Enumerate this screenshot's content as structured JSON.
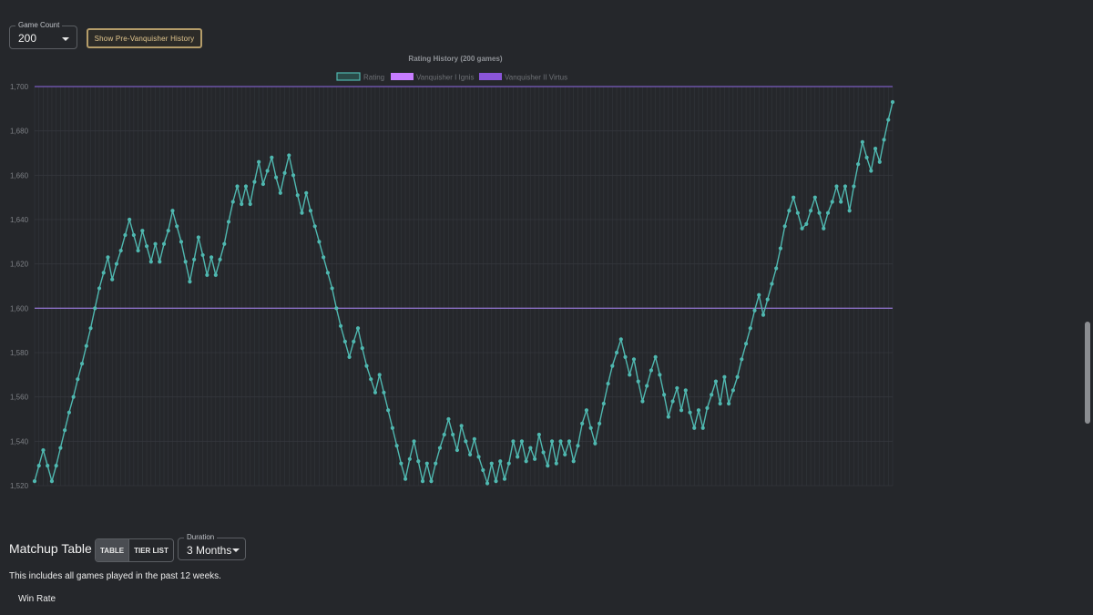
{
  "controls": {
    "game_count_label": "Game Count",
    "game_count_value": "200",
    "pre_vanquisher_button": "Show Pre-Vanquisher History"
  },
  "chart_data": {
    "type": "line",
    "title": "Rating History (200 games)",
    "legend": [
      "Rating",
      "Vanquisher I Ignis",
      "Vanquisher II Virtus"
    ],
    "legend_placement": "top-center",
    "ylim": [
      1520,
      1700
    ],
    "y_ticks": [
      "1,520",
      "1,540",
      "1,560",
      "1,580",
      "1,600",
      "1,620",
      "1,640",
      "1,660",
      "1,680",
      "1,700"
    ],
    "grid": true,
    "colors": {
      "rating": "#4fb8b0",
      "vanquisher_i": "#c77dff",
      "vanquisher_ii": "#8a55d8"
    },
    "thresholds": [
      {
        "name": "Vanquisher I Ignis",
        "value": 1600
      },
      {
        "name": "Vanquisher II Virtus",
        "value": 1700
      }
    ],
    "series": [
      {
        "name": "Rating",
        "values": [
          1522,
          1529,
          1536,
          1529,
          1522,
          1529,
          1537,
          1545,
          1553,
          1560,
          1568,
          1575,
          1583,
          1591,
          1600,
          1609,
          1616,
          1623,
          1613,
          1620,
          1626,
          1633,
          1640,
          1633,
          1626,
          1635,
          1628,
          1621,
          1629,
          1621,
          1629,
          1635,
          1644,
          1637,
          1630,
          1621,
          1612,
          1622,
          1632,
          1624,
          1615,
          1623,
          1615,
          1622,
          1629,
          1639,
          1648,
          1655,
          1647,
          1655,
          1647,
          1657,
          1666,
          1656,
          1662,
          1668,
          1659,
          1652,
          1661,
          1669,
          1660,
          1651,
          1643,
          1652,
          1644,
          1637,
          1630,
          1623,
          1616,
          1609,
          1600,
          1592,
          1585,
          1578,
          1585,
          1591,
          1582,
          1574,
          1568,
          1562,
          1570,
          1562,
          1554,
          1546,
          1538,
          1530,
          1523,
          1532,
          1540,
          1531,
          1522,
          1530,
          1522,
          1530,
          1537,
          1543,
          1550,
          1543,
          1536,
          1547,
          1540,
          1534,
          1541,
          1533,
          1527,
          1521,
          1530,
          1522,
          1531,
          1523,
          1530,
          1540,
          1533,
          1540,
          1531,
          1537,
          1532,
          1543,
          1535,
          1529,
          1540,
          1530,
          1540,
          1534,
          1540,
          1531,
          1538,
          1548,
          1554,
          1546,
          1539,
          1548,
          1557,
          1566,
          1574,
          1580,
          1586,
          1578,
          1570,
          1577,
          1567,
          1558,
          1565,
          1572,
          1578,
          1570,
          1561,
          1551,
          1558,
          1564,
          1554,
          1563,
          1553,
          1546,
          1554,
          1546,
          1555,
          1561,
          1567,
          1557,
          1569,
          1557,
          1563,
          1569,
          1577,
          1584,
          1591,
          1599,
          1606,
          1597,
          1604,
          1611,
          1618,
          1627,
          1637,
          1644,
          1650,
          1643,
          1636,
          1638,
          1644,
          1650,
          1643,
          1636,
          1643,
          1648,
          1655,
          1648,
          1655,
          1644,
          1655,
          1665,
          1675,
          1668,
          1662,
          1672,
          1666,
          1676,
          1685,
          1693
        ]
      }
    ]
  },
  "matchup": {
    "title": "Matchup Table",
    "tabs": [
      "TABLE",
      "TIER LIST"
    ],
    "duration_label": "Duration",
    "duration_value": "3 Months",
    "description": "This includes all games played in the past 12 weeks.",
    "win_rate_label": "Win Rate"
  }
}
